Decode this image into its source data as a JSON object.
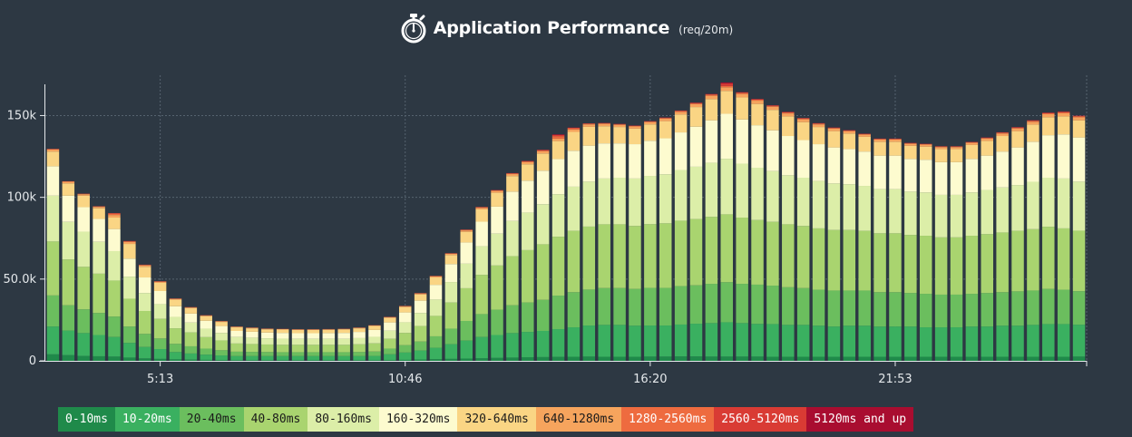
{
  "chart_data": {
    "type": "bar",
    "stacked": true,
    "title": "Application Performance",
    "subtitle": "(req/20m)",
    "ylim": [
      0,
      168000
    ],
    "y_ticks": [
      {
        "v": 0,
        "label": "0"
      },
      {
        "v": 50000,
        "label": "50.0k"
      },
      {
        "v": 100000,
        "label": "100k"
      },
      {
        "v": 150000,
        "label": "150k"
      }
    ],
    "x_ticks": [
      {
        "index": 7,
        "label": "5:13"
      },
      {
        "index": 23,
        "label": "10:46"
      },
      {
        "index": 39,
        "label": "16:20"
      },
      {
        "index": 55,
        "label": "21:53"
      }
    ],
    "grid": true,
    "legend_position": "bottom",
    "series": [
      {
        "name": "0-10ms",
        "color": "#1f8a4a",
        "text_color": "#ffffff",
        "values": [
          4000,
          3500,
          3000,
          2800,
          2600,
          2000,
          1500,
          1200,
          900,
          700,
          600,
          500,
          400,
          400,
          400,
          400,
          400,
          400,
          400,
          400,
          400,
          400,
          500,
          600,
          800,
          1000,
          1200,
          1400,
          1600,
          1800,
          2000,
          2200,
          2300,
          2400,
          2500,
          2600,
          2500,
          2500,
          2500,
          2600,
          2600,
          2700,
          2700,
          2600,
          2600,
          2600,
          2600,
          2500,
          2500,
          2500,
          2500,
          2500,
          2500,
          2500,
          2500,
          2500,
          2500,
          2500,
          2500,
          2500,
          2500,
          2500,
          2500,
          2500,
          2500,
          2500,
          2500,
          2600
        ]
      },
      {
        "name": "10-20ms",
        "color": "#3ab060",
        "text_color": "#ffffff",
        "values": [
          17000,
          15000,
          14000,
          13000,
          12000,
          9000,
          7000,
          6000,
          4500,
          3800,
          3200,
          2800,
          2500,
          2500,
          2500,
          2500,
          2500,
          2500,
          2500,
          2500,
          2500,
          2600,
          3500,
          4500,
          5500,
          7000,
          9000,
          11000,
          13000,
          14000,
          15000,
          15500,
          16000,
          17000,
          18000,
          19000,
          19500,
          19500,
          19000,
          19000,
          19000,
          19500,
          20000,
          20500,
          21000,
          20500,
          20000,
          20000,
          19500,
          19500,
          19000,
          18500,
          19000,
          19000,
          18500,
          18500,
          18500,
          18000,
          18000,
          18000,
          18500,
          18500,
          19000,
          19000,
          19500,
          20000,
          20000,
          19500
        ]
      },
      {
        "name": "20-40ms",
        "color": "#6bbe5e",
        "text_color": "#1a1a1a",
        "values": [
          19000,
          15500,
          14500,
          13500,
          12500,
          10000,
          8000,
          6500,
          5000,
          4400,
          3700,
          3200,
          2700,
          2600,
          2500,
          2400,
          2400,
          2400,
          2400,
          2400,
          2500,
          2700,
          3500,
          4500,
          5500,
          7000,
          9500,
          12000,
          14000,
          15500,
          17000,
          18000,
          19000,
          20500,
          21500,
          22000,
          22500,
          22500,
          22500,
          23000,
          23000,
          23500,
          23500,
          24000,
          24500,
          24000,
          24000,
          23500,
          23000,
          22500,
          22000,
          22000,
          21500,
          21500,
          21000,
          21000,
          20500,
          20500,
          20000,
          20000,
          20000,
          20500,
          20500,
          21000,
          21000,
          21500,
          21000,
          20500
        ]
      },
      {
        "name": "40-80ms",
        "color": "#a9d46f",
        "text_color": "#1a1a1a",
        "values": [
          33000,
          28000,
          26000,
          24000,
          22000,
          17000,
          14000,
          12000,
          9500,
          8500,
          7000,
          6000,
          5000,
          4800,
          4600,
          4500,
          4500,
          4500,
          4500,
          4500,
          4700,
          5000,
          6000,
          7500,
          9500,
          12500,
          16000,
          20000,
          24000,
          27000,
          30000,
          32000,
          34000,
          36000,
          37500,
          38500,
          39000,
          39000,
          38500,
          39000,
          39500,
          40000,
          40500,
          41000,
          41500,
          40500,
          39500,
          39000,
          38500,
          38000,
          37500,
          37000,
          37000,
          36500,
          36000,
          36000,
          35500,
          35500,
          35000,
          35000,
          35500,
          36000,
          36500,
          37000,
          37500,
          38000,
          37500,
          37000
        ]
      },
      {
        "name": "80-160ms",
        "color": "#dceea8",
        "text_color": "#1a1a1a",
        "values": [
          28000,
          23000,
          21500,
          19500,
          18000,
          13500,
          11000,
          9000,
          7000,
          6000,
          5200,
          4600,
          4000,
          3900,
          3800,
          3800,
          3700,
          3700,
          3700,
          3700,
          3800,
          4000,
          5000,
          6500,
          8000,
          10000,
          12500,
          15000,
          17500,
          19500,
          21500,
          23000,
          24500,
          26000,
          27000,
          27500,
          28000,
          28500,
          29000,
          29500,
          30000,
          31000,
          32000,
          33000,
          34000,
          33000,
          32000,
          31000,
          30000,
          29500,
          29000,
          28500,
          28000,
          27500,
          27000,
          27000,
          26500,
          26500,
          26000,
          26000,
          26500,
          27000,
          27500,
          28000,
          29000,
          30000,
          30500,
          30000
        ]
      },
      {
        "name": "160-320ms",
        "color": "#fdfbcf",
        "text_color": "#1a1a1a",
        "values": [
          18000,
          16000,
          15000,
          14000,
          13500,
          11000,
          9500,
          8000,
          6500,
          5500,
          4800,
          4200,
          3700,
          3600,
          3500,
          3500,
          3400,
          3400,
          3500,
          3600,
          3800,
          4200,
          5000,
          6000,
          7500,
          9000,
          11000,
          13000,
          15000,
          16500,
          18000,
          19500,
          20500,
          21500,
          22000,
          22000,
          21500,
          21000,
          21000,
          21500,
          22000,
          23000,
          24500,
          26000,
          27500,
          27000,
          26000,
          25000,
          24000,
          23000,
          22500,
          22000,
          21500,
          21000,
          20500,
          20500,
          20000,
          20000,
          20000,
          20000,
          20500,
          21000,
          22000,
          23000,
          24500,
          26000,
          27000,
          27000
        ]
      },
      {
        "name": "320-640ms",
        "color": "#fad584",
        "text_color": "#1a1a1a",
        "values": [
          9000,
          7500,
          7000,
          6500,
          7000,
          9000,
          6500,
          5000,
          4000,
          3300,
          2800,
          2500,
          2200,
          2100,
          2000,
          2000,
          2000,
          2000,
          2000,
          2100,
          2200,
          2400,
          2800,
          3300,
          3800,
          4500,
          5500,
          6500,
          7500,
          8500,
          9500,
          10000,
          10500,
          11000,
          11500,
          11500,
          10500,
          10000,
          9500,
          10000,
          10500,
          11000,
          12000,
          13000,
          14000,
          13500,
          13000,
          12500,
          12000,
          11000,
          10500,
          10000,
          9500,
          9000,
          8500,
          8500,
          8000,
          8000,
          8000,
          8000,
          8500,
          9000,
          9500,
          10000,
          10500,
          11000,
          11000,
          10500
        ]
      },
      {
        "name": "640-1280ms",
        "color": "#f6a45d",
        "text_color": "#1a1a1a",
        "values": [
          1200,
          1000,
          900,
          900,
          1600,
          1200,
          900,
          700,
          500,
          450,
          400,
          350,
          300,
          300,
          300,
          300,
          300,
          300,
          300,
          300,
          300,
          350,
          400,
          500,
          600,
          700,
          800,
          900,
          1000,
          1100,
          1200,
          1300,
          1400,
          1500,
          1500,
          1500,
          1400,
          1300,
          1300,
          1400,
          1500,
          1600,
          1800,
          2000,
          2200,
          2100,
          2000,
          1900,
          1800,
          1700,
          1600,
          1500,
          1400,
          1300,
          1300,
          1300,
          1200,
          1200,
          1200,
          1200,
          1300,
          1400,
          1500,
          1600,
          1700,
          1800,
          1900,
          1800
        ]
      },
      {
        "name": "1280-2560ms",
        "color": "#ee6b3f",
        "text_color": "#ffffff",
        "values": [
          300,
          250,
          250,
          250,
          900,
          450,
          300,
          250,
          200,
          150,
          150,
          100,
          100,
          100,
          100,
          100,
          100,
          100,
          100,
          100,
          100,
          100,
          150,
          150,
          200,
          200,
          250,
          300,
          350,
          400,
          400,
          500,
          600,
          1500,
          700,
          400,
          400,
          400,
          400,
          400,
          450,
          500,
          600,
          700,
          800,
          700,
          700,
          600,
          600,
          550,
          500,
          450,
          450,
          400,
          400,
          400,
          400,
          350,
          350,
          350,
          400,
          450,
          500,
          550,
          600,
          650,
          700,
          650
        ]
      },
      {
        "name": "2560-5120ms",
        "color": "#d93b34",
        "text_color": "#ffffff",
        "values": [
          100,
          80,
          80,
          80,
          200,
          120,
          100,
          80,
          60,
          50,
          50,
          40,
          40,
          40,
          40,
          40,
          40,
          40,
          40,
          40,
          40,
          40,
          50,
          50,
          60,
          70,
          80,
          100,
          120,
          140,
          160,
          200,
          250,
          800,
          300,
          150,
          150,
          150,
          150,
          150,
          180,
          200,
          250,
          300,
          1500,
          300,
          300,
          250,
          250,
          220,
          200,
          180,
          180,
          160,
          160,
          160,
          160,
          150,
          150,
          150,
          160,
          180,
          200,
          220,
          250,
          280,
          300,
          280
        ]
      },
      {
        "name": "5120ms and up",
        "color": "#a90d30",
        "text_color": "#ffffff",
        "values": [
          50,
          40,
          40,
          40,
          100,
          60,
          50,
          40,
          30,
          25,
          25,
          20,
          20,
          20,
          20,
          20,
          20,
          20,
          20,
          20,
          20,
          20,
          25,
          25,
          30,
          35,
          40,
          50,
          60,
          70,
          80,
          100,
          120,
          300,
          150,
          80,
          80,
          80,
          80,
          80,
          90,
          100,
          120,
          150,
          600,
          150,
          150,
          120,
          120,
          110,
          100,
          90,
          90,
          80,
          80,
          80,
          80,
          70,
          70,
          70,
          80,
          90,
          100,
          110,
          120,
          130,
          150,
          140
        ]
      }
    ]
  }
}
